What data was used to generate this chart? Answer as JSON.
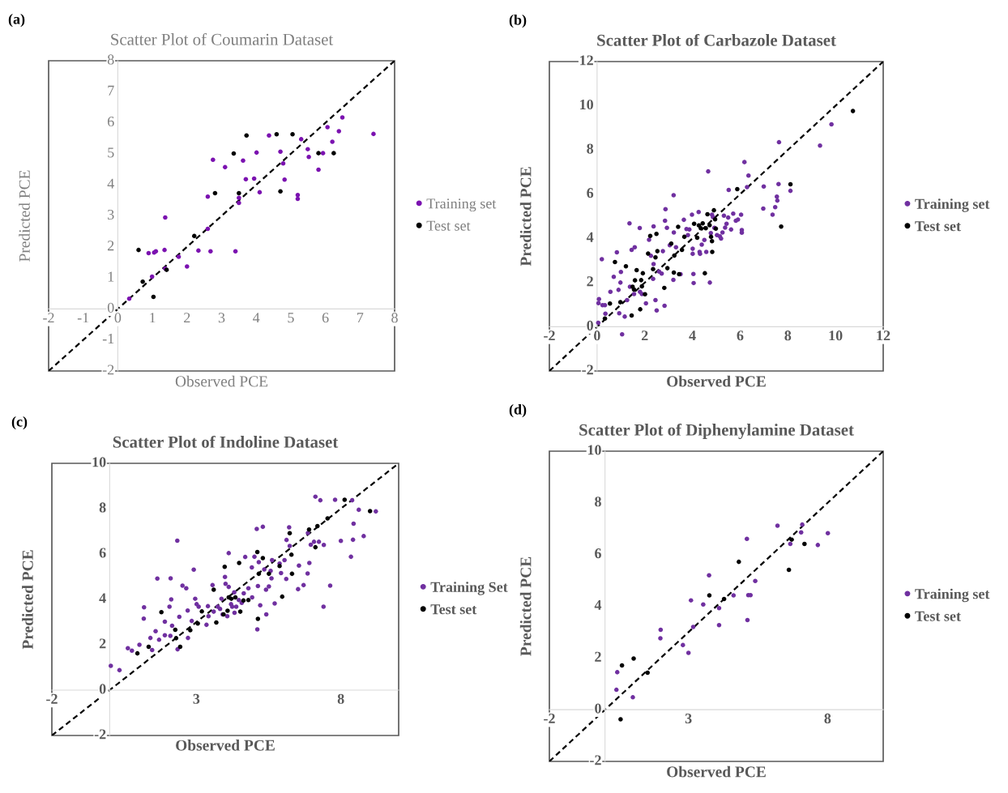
{
  "chart_data": [
    {
      "type": "scatter",
      "title": "Scatter Plot of Coumarin Dataset",
      "xlabel": "Observed PCE",
      "ylabel": "Predicted PCE",
      "annotations": [
        "(a)"
      ],
      "xlim": [
        -2,
        8
      ],
      "ylim": [
        -2,
        8
      ],
      "xticks": [
        -2,
        -1,
        0,
        1,
        2,
        3,
        4,
        5,
        6,
        7,
        8
      ],
      "yticks": [
        -2,
        -1,
        0,
        1,
        2,
        3,
        4,
        5,
        6,
        7,
        8
      ],
      "legend": "right",
      "marker": "circle",
      "series": [
        {
          "name": "Training set",
          "color": "#7b12b0",
          "x": [
            0.33,
            0.89,
            1.05,
            1.1,
            0.99,
            1.35,
            1.37,
            1.37,
            1.76,
            2.0,
            2.33,
            2.6,
            2.6,
            2.68,
            2.75,
            3.1,
            3.4,
            3.5,
            3.5,
            3.62,
            3.7,
            3.94,
            4.01,
            4.1,
            4.37,
            4.7,
            4.78,
            4.82,
            5.2,
            5.2,
            5.3,
            5.49,
            5.52,
            5.8,
            5.93,
            6.06,
            6.2,
            6.39,
            6.49,
            7.39
          ],
          "values": [
            0.33,
            1.8,
            1.82,
            1.86,
            1.04,
            1.9,
            2.95,
            1.3,
            1.68,
            1.37,
            1.88,
            2.58,
            3.62,
            1.86,
            4.81,
            4.57,
            1.86,
            3.58,
            3.42,
            4.78,
            4.18,
            4.2,
            5.04,
            3.76,
            5.59,
            5.07,
            4.69,
            4.17,
            3.67,
            3.55,
            5.47,
            5.15,
            4.9,
            4.49,
            5.02,
            5.86,
            5.39,
            5.73,
            6.17,
            5.64
          ]
        },
        {
          "name": "Test set",
          "color": "#000000",
          "x": [
            0.6,
            0.72,
            1.03,
            1.41,
            2.21,
            2.81,
            3.35,
            3.5,
            3.72,
            4.59,
            4.7,
            5.05,
            5.8,
            6.24
          ],
          "values": [
            1.9,
            0.88,
            0.39,
            1.26,
            2.35,
            3.73,
            5.01,
            3.73,
            5.59,
            5.63,
            3.79,
            5.63,
            5.02,
            5.02
          ]
        },
        {
          "type": "line",
          "marker": "none",
          "color": "#000000",
          "line_style": "dashed",
          "x": [
            -2,
            8
          ],
          "values": [
            -2,
            8
          ]
        }
      ]
    },
    {
      "type": "scatter",
      "title": "Scatter Plot of Carbazole Dataset",
      "xlabel": "Observed PCE",
      "ylabel": "Predicted PCE",
      "annotations": [
        "(b)"
      ],
      "xlim": [
        -2,
        12
      ],
      "ylim": [
        -2,
        12
      ],
      "xticks": [
        -2,
        0,
        2,
        4,
        6,
        8,
        10,
        12
      ],
      "yticks": [
        -2,
        0,
        2,
        4,
        6,
        8,
        10,
        12
      ],
      "legend": "right",
      "marker": "circle",
      "series": [
        {
          "name": "Training set",
          "color": "#7030a0",
          "x": [
            0.05,
            0.08,
            0.06,
            0.23,
            0.33,
            0.35,
            0.2,
            0.56,
            0.7,
            0.83,
            0.9,
            0.93,
            0.98,
            1.0,
            1.05,
            1.16,
            1.26,
            1.36,
            1.38,
            1.45,
            1.58,
            1.55,
            1.79,
            1.8,
            1.88,
            2.05,
            2.18,
            2.26,
            2.37,
            2.37,
            2.35,
            2.45,
            2.5,
            2.6,
            2.71,
            2.76,
            2.83,
            2.87,
            2.85,
            2.93,
            3.05,
            3.2,
            3.21,
            3.22,
            3.31,
            3.5,
            3.64,
            3.75,
            3.81,
            3.87,
            3.98,
            4.01,
            4.04,
            4.05,
            4.01,
            4.26,
            4.3,
            4.32,
            4.39,
            4.5,
            4.58,
            4.66,
            4.73,
            4.77,
            4.82,
            4.86,
            4.92,
            5.03,
            5.15,
            5.2,
            5.26,
            5.32,
            5.37,
            5.43,
            5.5,
            5.52,
            5.62,
            5.71,
            5.82,
            5.91,
            6.04,
            6.07,
            6.07,
            6.18,
            6.29,
            6.35,
            6.97,
            6.99,
            7.36,
            7.47,
            7.54,
            7.56,
            7.61,
            7.63,
            8.11,
            9.35,
            9.83
          ],
          "values": [
            0.18,
            1.25,
            1.07,
            0.98,
            0.98,
            0.59,
            3.06,
            1.58,
            2.26,
            3.37,
            1.67,
            0.61,
            2.0,
            2.48,
            -0.34,
            0.46,
            1.21,
            4.68,
            1.81,
            3.48,
            3.6,
            1.48,
            4.47,
            1.58,
            1.48,
            1.06,
            3.94,
            3.21,
            4.54,
            2.84,
            2.17,
            1.21,
            0.74,
            2.5,
            2.41,
            3.42,
            0.95,
            5.32,
            4.8,
            4.48,
            3.69,
            2.12,
            5.95,
            4.27,
            3.6,
            2.38,
            4.84,
            4.42,
            4.15,
            4.4,
            5.07,
            3.53,
            2.39,
            1.98,
            3.3,
            5.19,
            3.39,
            3.3,
            3.72,
            3.93,
            3.39,
            7.03,
            2.0,
            4.24,
            5.07,
            4.96,
            4.48,
            4.15,
            4.09,
            3.99,
            4.27,
            5.03,
            4.49,
            4.66,
            4.94,
            6.19,
            4.4,
            5.12,
            4.8,
            4.85,
            5.07,
            4.38,
            4.26,
            7.45,
            6.32,
            6.84,
            5.35,
            6.35,
            5.07,
            5.41,
            5.89,
            5.71,
            6.46,
            8.35,
            6.15,
            8.2,
            9.16
          ]
        },
        {
          "name": "Test set",
          "color": "#000000",
          "x": [
            0.33,
            0.54,
            0.75,
            0.98,
            1.21,
            1.45,
            1.49,
            1.55,
            1.66,
            1.59,
            1.81,
            1.85,
            1.88,
            1.92,
            2.01,
            2.14,
            2.23,
            2.35,
            2.45,
            2.49,
            2.53,
            2.82,
            2.95,
            3.11,
            3.22,
            3.24,
            3.4,
            3.44,
            3.56,
            3.66,
            4.07,
            4.2,
            4.27,
            4.35,
            4.43,
            4.52,
            4.56,
            4.63,
            4.72,
            4.78,
            4.82,
            4.83,
            4.9,
            4.95,
            4.98,
            5.88,
            7.72,
            8.11,
            10.73
          ],
          "values": [
            0.37,
            1.05,
            2.93,
            1.11,
            2.74,
            0.51,
            1.81,
            1.68,
            2.56,
            2.1,
            0.79,
            2.11,
            1.83,
            2.42,
            1.47,
            3.31,
            4.11,
            2.61,
            3.14,
            4.2,
            3.42,
            1.76,
            2.65,
            3.76,
            2.45,
            3.22,
            4.52,
            2.38,
            3.48,
            4.07,
            4.66,
            4.03,
            4.59,
            4.46,
            4.68,
            2.42,
            4.46,
            5.09,
            4.6,
            4.07,
            3.87,
            3.39,
            5.27,
            4.86,
            4.44,
            6.23,
            4.53,
            6.45,
            9.76
          ]
        },
        {
          "type": "line",
          "marker": "none",
          "color": "#000000",
          "line_style": "dashed",
          "x": [
            -2,
            12
          ],
          "values": [
            -2,
            12
          ]
        }
      ]
    },
    {
      "type": "scatter",
      "title": "Scatter Plot of Indoline Dataset",
      "xlabel": "Observed PCE",
      "ylabel": "Predicted PCE",
      "annotations": [
        "(c)"
      ],
      "xlim": [
        -2,
        10
      ],
      "ylim": [
        -2,
        10
      ],
      "xticks": [
        -2,
        3,
        8
      ],
      "yticks": [
        -2,
        0,
        2,
        4,
        6,
        8,
        10
      ],
      "legend": "right",
      "marker": "circle",
      "series": [
        {
          "name": "Training Set",
          "color": "#7030a0",
          "x": [
            0.04,
            0.34,
            0.63,
            0.77,
            1.03,
            1.19,
            1.18,
            1.41,
            1.47,
            1.59,
            1.65,
            1.71,
            1.91,
            1.91,
            2.07,
            2.1,
            2.11,
            2.13,
            2.16,
            2.34,
            2.35,
            2.41,
            2.52,
            2.65,
            2.7,
            2.71,
            2.84,
            2.91,
            2.96,
            3.01,
            3.08,
            3.35,
            3.4,
            3.42,
            3.56,
            3.6,
            3.74,
            3.82,
            3.87,
            3.91,
            3.99,
            4.01,
            4.07,
            4.12,
            4.12,
            4.2,
            4.24,
            4.31,
            4.32,
            4.38,
            4.47,
            4.57,
            4.64,
            4.69,
            4.8,
            4.92,
            4.93,
            5.01,
            5.09,
            5.11,
            5.13,
            5.16,
            5.21,
            5.3,
            5.35,
            5.41,
            5.42,
            5.51,
            5.57,
            5.6,
            5.62,
            5.71,
            5.88,
            5.93,
            6.05,
            6.11,
            6.12,
            6.21,
            6.23,
            6.52,
            6.55,
            6.71,
            6.85,
            6.86,
            6.91,
            6.96,
            7.07,
            7.12,
            7.24,
            7.29,
            7.4,
            7.41,
            7.63,
            7.8,
            8.0,
            8.35,
            8.39,
            8.42,
            8.44,
            8.62,
            8.79,
            9.21
          ],
          "values": [
            1.07,
            0.88,
            1.85,
            1.74,
            2.0,
            3.65,
            3.15,
            2.3,
            1.77,
            2.6,
            4.92,
            2.22,
            3.02,
            2.42,
            3.68,
            2.39,
            4.93,
            4.0,
            2.84,
            6.59,
            1.8,
            3.23,
            4.61,
            4.49,
            3.51,
            2.3,
            3.05,
            5.31,
            4.03,
            3.79,
            3.68,
            2.88,
            3.7,
            3.26,
            4.63,
            3.46,
            3.68,
            3.58,
            4.03,
            3.34,
            4.99,
            4.69,
            3.26,
            6.04,
            4.55,
            3.79,
            3.68,
            4.31,
            3.41,
            3.68,
            3.97,
            3.85,
            4.27,
            5.87,
            4.49,
            5.41,
            4.09,
            5.88,
            7.11,
            2.68,
            4.59,
            5.64,
            3.74,
            7.2,
            5.32,
            4.43,
            3.34,
            4.57,
            5.26,
            4.93,
            5.73,
            3.82,
            5.58,
            5.16,
            5.73,
            4.9,
            6.62,
            7.18,
            6.36,
            4.45,
            5.49,
            4.63,
            5.14,
            6.93,
            5.61,
            6.41,
            6.54,
            8.53,
            6.54,
            8.37,
            3.68,
            6.4,
            4.61,
            8.39,
            6.58,
            5.88,
            8.37,
            6.63,
            7.34,
            7.95,
            6.79,
            7.88
          ]
        },
        {
          "name": "Test set",
          "color": "#000000",
          "x": [
            0.96,
            1.35,
            1.79,
            2.27,
            2.3,
            2.44,
            2.79,
            3.05,
            3.19,
            3.6,
            3.69,
            3.94,
            3.98,
            4.08,
            4.12,
            4.21,
            4.35,
            4.48,
            4.52,
            4.63,
            4.8,
            5.11,
            5.13,
            5.16,
            5.3,
            5.51,
            5.88,
            5.97,
            6.23,
            6.29,
            6.31,
            6.9,
            7.12,
            7.19,
            7.54,
            8.13,
            9.01
          ],
          "values": [
            1.62,
            1.91,
            3.44,
            2.66,
            2.29,
            1.91,
            2.64,
            2.94,
            3.47,
            4.43,
            2.98,
            3.34,
            5.44,
            3.5,
            4.09,
            4.03,
            4.09,
            5.61,
            3.46,
            3.95,
            3.97,
            6.09,
            3.14,
            5.13,
            5.82,
            5.13,
            5.47,
            4.12,
            6.92,
            5.97,
            5.13,
            7.08,
            6.3,
            7.23,
            7.57,
            8.39,
            7.89
          ]
        },
        {
          "type": "line",
          "marker": "none",
          "color": "#000000",
          "line_style": "dashed",
          "x": [
            -2,
            10
          ],
          "values": [
            -2,
            10
          ]
        }
      ]
    },
    {
      "type": "scatter",
      "title": "Scatter Plot of Diphenylamine Dataset",
      "xlabel": "Observed PCE",
      "ylabel": "Predicted PCE",
      "annotations": [
        "(d)"
      ],
      "xlim": [
        -2,
        10
      ],
      "ylim": [
        -2,
        10
      ],
      "xticks": [
        -2,
        3,
        8
      ],
      "yticks": [
        -2,
        0,
        2,
        4,
        6,
        8,
        10
      ],
      "legend": "right",
      "marker": "circle",
      "series": [
        {
          "name": "Training set",
          "color": "#7030a0",
          "x": [
            0.41,
            0.44,
            1.0,
            1.99,
            2.0,
            2.8,
            3.0,
            3.09,
            3.17,
            3.53,
            3.74,
            4.1,
            4.1,
            4.62,
            5.1,
            5.12,
            5.15,
            5.23,
            5.4,
            6.2,
            6.66,
            7.05,
            7.09,
            7.65,
            8.01
          ],
          "values": [
            0.77,
            1.45,
            0.48,
            2.76,
            3.09,
            2.5,
            2.2,
            4.23,
            3.2,
            4.07,
            5.2,
            3.93,
            3.27,
            4.42,
            6.61,
            3.47,
            4.43,
            4.43,
            4.98,
            7.12,
            6.41,
            6.86,
            7.16,
            6.37,
            6.83
          ]
        },
        {
          "name": "Test set",
          "color": "#000000",
          "x": [
            0.56,
            0.61,
            1.03,
            1.53,
            3.75,
            4.28,
            4.81,
            6.61,
            6.71,
            7.17
          ],
          "values": [
            -0.37,
            1.71,
            1.98,
            1.43,
            4.42,
            4.28,
            5.72,
            5.41,
            6.58,
            6.41
          ]
        },
        {
          "type": "line",
          "marker": "none",
          "color": "#000000",
          "line_style": "dashed",
          "x": [
            -2,
            10
          ],
          "values": [
            -2,
            10
          ]
        }
      ]
    }
  ]
}
